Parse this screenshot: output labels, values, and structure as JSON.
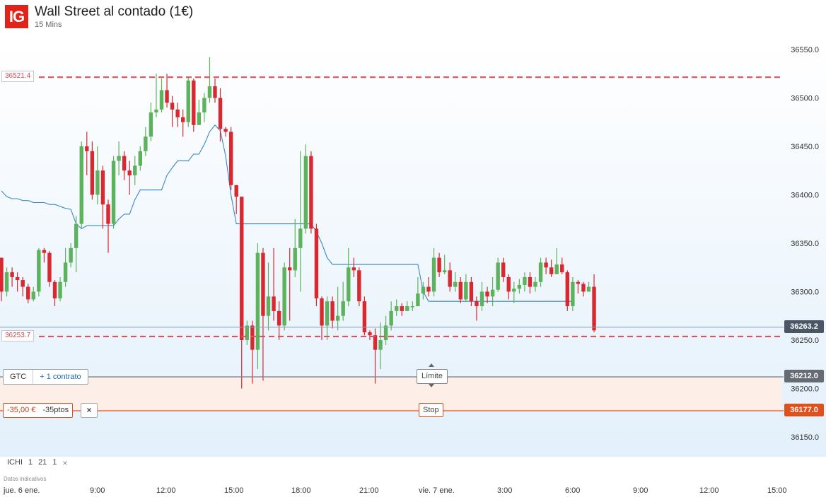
{
  "header": {
    "logo_text": "IG",
    "title": "Wall Street al contado (1€)",
    "interval": "15 Mins"
  },
  "colors": {
    "up": "#5cb25d",
    "down": "#d9282f",
    "ma_line": "#3a87c8",
    "dashed_level": "#d9545d",
    "stop": "#e0501b",
    "logo": "#e2231a"
  },
  "chart_data": {
    "type": "candlestick",
    "y_axis": {
      "range": [
        36125,
        36575
      ],
      "ticks": [
        "36550.0",
        "36500.0",
        "36450.0",
        "36400.0",
        "36350.0",
        "36300.0",
        "36250.0",
        "36200.0",
        "36150.0"
      ]
    },
    "x_axis": {
      "labels": [
        "jue. 6 ene.",
        "9:00",
        "12:00",
        "15:00",
        "18:00",
        "21:00",
        "vie. 7 ene.",
        "3:00",
        "6:00",
        "9:00",
        "12:00",
        "15:00"
      ]
    },
    "candles": [
      [
        36335,
        36300,
        36335,
        36290
      ],
      [
        36300,
        36320,
        36325,
        36295
      ],
      [
        36320,
        36315,
        36325,
        36305
      ],
      [
        36315,
        36312,
        36320,
        36300
      ],
      [
        36312,
        36305,
        36315,
        36295
      ],
      [
        36305,
        36292,
        36308,
        36288
      ],
      [
        36292,
        36300,
        36305,
        36290
      ],
      [
        36300,
        36343,
        36345,
        36295
      ],
      [
        36343,
        36340,
        36345,
        36330
      ],
      [
        36340,
        36310,
        36342,
        36305
      ],
      [
        36310,
        36293,
        36312,
        36285
      ],
      [
        36293,
        36310,
        36315,
        36290
      ],
      [
        36310,
        36330,
        36345,
        36305
      ],
      [
        36330,
        36345,
        36350,
        36325
      ],
      [
        36345,
        36370,
        36378,
        36320
      ],
      [
        36370,
        36450,
        36455,
        36365
      ],
      [
        36450,
        36445,
        36465,
        36420
      ],
      [
        36445,
        36400,
        36455,
        36395
      ],
      [
        36400,
        36425,
        36450,
        36390
      ],
      [
        36425,
        36390,
        36430,
        36365
      ],
      [
        36390,
        36370,
        36395,
        36340
      ],
      [
        36370,
        36435,
        36440,
        36365
      ],
      [
        36435,
        36440,
        36455,
        36420
      ],
      [
        36440,
        36425,
        36445,
        36415
      ],
      [
        36425,
        36420,
        36435,
        36400
      ],
      [
        36420,
        36430,
        36440,
        36410
      ],
      [
        36430,
        36445,
        36450,
        36425
      ],
      [
        36445,
        36460,
        36470,
        36440
      ],
      [
        36460,
        36485,
        36495,
        36455
      ],
      [
        36485,
        36488,
        36525,
        36480
      ],
      [
        36488,
        36508,
        36520,
        36485
      ],
      [
        36508,
        36495,
        36525,
        36490
      ],
      [
        36495,
        36488,
        36502,
        36470
      ],
      [
        36488,
        36480,
        36495,
        36470
      ],
      [
        36480,
        36475,
        36488,
        36460
      ],
      [
        36475,
        36518,
        36522,
        36470
      ],
      [
        36518,
        36472,
        36520,
        36465
      ],
      [
        36472,
        36485,
        36498,
        36475
      ],
      [
        36485,
        36500,
        36505,
        36475
      ],
      [
        36500,
        36512,
        36542,
        36495
      ],
      [
        36512,
        36500,
        36520,
        36495
      ],
      [
        36500,
        36468,
        36510,
        36455
      ],
      [
        36468,
        36465,
        36470,
        36460
      ],
      [
        36465,
        36410,
        36470,
        36405
      ],
      [
        36410,
        36398,
        36405,
        36380
      ],
      [
        36398,
        36250,
        36395,
        36200
      ],
      [
        36250,
        36265,
        36270,
        36245
      ],
      [
        36265,
        36240,
        36270,
        36205
      ],
      [
        36240,
        36340,
        36350,
        36220
      ],
      [
        36340,
        36275,
        36345,
        36208
      ],
      [
        36275,
        36295,
        36330,
        36260
      ],
      [
        36295,
        36280,
        36345,
        36270
      ],
      [
        36280,
        36265,
        36290,
        36250
      ],
      [
        36265,
        36325,
        36330,
        36260
      ],
      [
        36325,
        36322,
        36345,
        36270
      ],
      [
        36322,
        36345,
        36375,
        36315
      ],
      [
        36345,
        36365,
        36445,
        36300
      ],
      [
        36365,
        36440,
        36452,
        36360
      ],
      [
        36440,
        36365,
        36445,
        36360
      ],
      [
        36365,
        36293,
        36370,
        36285
      ],
      [
        36293,
        36265,
        36295,
        36250
      ],
      [
        36265,
        36290,
        36295,
        36250
      ],
      [
        36290,
        36270,
        36295,
        36262
      ],
      [
        36270,
        36275,
        36305,
        36260
      ],
      [
        36275,
        36290,
        36310,
        36270
      ],
      [
        36290,
        36325,
        36345,
        36285
      ],
      [
        36325,
        36322,
        36335,
        36315
      ],
      [
        36322,
        36290,
        36325,
        36285
      ],
      [
        36290,
        36258,
        36295,
        36255
      ],
      [
        36258,
        36255,
        36260,
        36250
      ],
      [
        36255,
        36240,
        36262,
        36205
      ],
      [
        36240,
        36250,
        36268,
        36220
      ],
      [
        36250,
        36265,
        36275,
        36245
      ],
      [
        36265,
        36280,
        36290,
        36260
      ],
      [
        36280,
        36285,
        36292,
        36275
      ],
      [
        36285,
        36280,
        36288,
        36275
      ],
      [
        36280,
        36285,
        36290,
        36280
      ],
      [
        36285,
        36285,
        36290,
        36280
      ],
      [
        36285,
        36298,
        36315,
        36285
      ],
      [
        36298,
        36305,
        36310,
        36292
      ],
      [
        36305,
        36300,
        36315,
        36295
      ],
      [
        36300,
        36335,
        36345,
        36295
      ],
      [
        36335,
        36320,
        36340,
        36315
      ],
      [
        36320,
        36322,
        36338,
        36318
      ],
      [
        36322,
        36305,
        36330,
        36300
      ],
      [
        36305,
        36310,
        36320,
        36300
      ],
      [
        36310,
        36292,
        36315,
        36288
      ],
      [
        36292,
        36310,
        36318,
        36290
      ],
      [
        36310,
        36290,
        36315,
        36285
      ],
      [
        36290,
        36285,
        36295,
        36270
      ],
      [
        36285,
        36300,
        36310,
        36280
      ],
      [
        36300,
        36295,
        36305,
        36288
      ],
      [
        36295,
        36302,
        36315,
        36285
      ],
      [
        36302,
        36330,
        36335,
        36300
      ],
      [
        36330,
        36315,
        36335,
        36310
      ],
      [
        36315,
        36300,
        36318,
        36292
      ],
      [
        36300,
        36303,
        36310,
        36288
      ],
      [
        36303,
        36307,
        36313,
        36298
      ],
      [
        36307,
        36315,
        36320,
        36300
      ],
      [
        36315,
        36305,
        36320,
        36298
      ],
      [
        36305,
        36310,
        36315,
        36300
      ],
      [
        36310,
        36330,
        36335,
        36305
      ],
      [
        36330,
        36325,
        36335,
        36318
      ],
      [
        36325,
        36318,
        36333,
        36315
      ],
      [
        36318,
        36328,
        36345,
        36318
      ],
      [
        36328,
        36320,
        36335,
        36318
      ],
      [
        36320,
        36285,
        36322,
        36280
      ],
      [
        36285,
        36310,
        36315,
        36280
      ],
      [
        36310,
        36308,
        36312,
        36298
      ],
      [
        36308,
        36300,
        36310,
        36295
      ],
      [
        36300,
        36305,
        36310,
        36300
      ],
      [
        36305,
        36260,
        36318,
        36258
      ]
    ],
    "ma_line": [
      36404,
      36398,
      36396,
      36396,
      36394,
      36394,
      36392,
      36392,
      36392,
      36390,
      36390,
      36388,
      36386,
      36385,
      36370,
      36365,
      36368,
      36368,
      36368,
      36368,
      36368,
      36368,
      36375,
      36380,
      36380,
      36395,
      36405,
      36405,
      36405,
      36405,
      36405,
      36420,
      36428,
      36435,
      36435,
      36435,
      36442,
      36442,
      36452,
      36465,
      36472,
      36466,
      36440,
      36400,
      36370,
      36370,
      36370,
      36370,
      36370,
      36370,
      36370,
      36370,
      36370,
      36370,
      36370,
      36370,
      36370,
      36370,
      36370,
      36362,
      36350,
      36335,
      36328,
      36328,
      36328,
      36328,
      36328,
      36328,
      36328,
      36328,
      36328,
      36328,
      36328,
      36328,
      36328,
      36328,
      36328,
      36328,
      36328,
      36300,
      36290,
      36290,
      36290,
      36290,
      36290,
      36290,
      36290,
      36290,
      36290,
      36290,
      36290,
      36290,
      36290,
      36290,
      36290,
      36290,
      36290,
      36290,
      36290,
      36290,
      36290,
      36290,
      36290,
      36290,
      36290,
      36290,
      36290,
      36290
    ],
    "current_price": 36263.2,
    "levels": {
      "upper_dashed": "36521.4",
      "lower_dashed": "36253.7",
      "current_badge": "36263.2",
      "order_badge": "36212.0",
      "stop_badge": "36177.0"
    }
  },
  "order": {
    "gtc_label": "GTC",
    "contract_label": "+ 1 contrato",
    "limit_label": "Límite"
  },
  "stop": {
    "amount": "-35,00 €",
    "points": "-35ptos",
    "close_icon": "×",
    "label": "Stop"
  },
  "indicator": {
    "name": "ICHI",
    "p1": "1",
    "p2": "21",
    "p3": "1",
    "remove_icon": "×"
  },
  "footer": {
    "data_note": "Datos indicativos"
  }
}
